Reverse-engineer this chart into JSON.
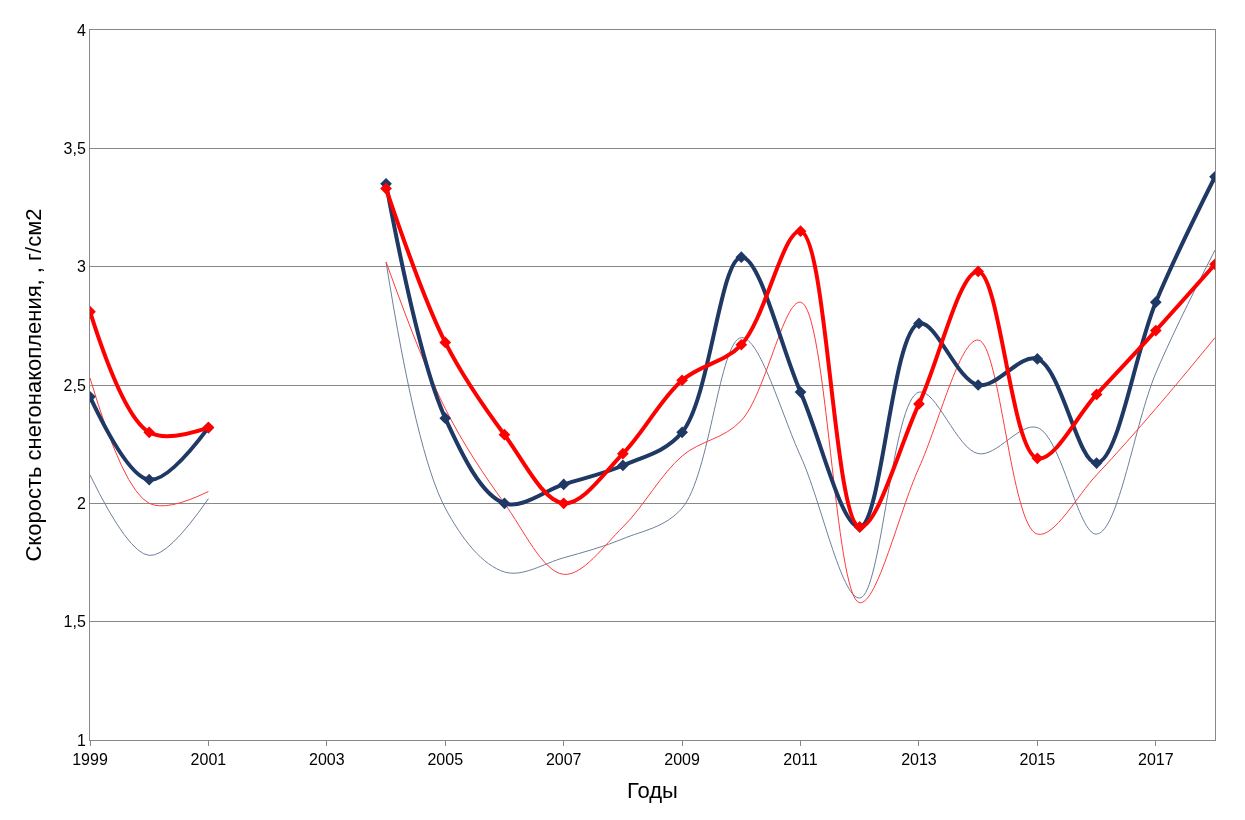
{
  "chart_data": {
    "type": "line",
    "xlabel": "Годы",
    "ylabel": "Скорость снегонакопления, , г/см2",
    "x": [
      1999,
      2000,
      2001,
      2002,
      2003,
      2004,
      2005,
      2006,
      2007,
      2008,
      2009,
      2010,
      2011,
      2012,
      2013,
      2014,
      2015,
      2016,
      2017,
      2018
    ],
    "series": [
      {
        "color": "#6d7f9c",
        "marker": "none",
        "values": [
          2.12,
          1.78,
          2.02,
          null,
          null,
          3.02,
          1.98,
          1.71,
          1.77,
          1.85,
          1.98,
          2.7,
          2.2,
          1.6,
          2.47,
          2.21,
          2.32,
          1.87,
          2.55,
          3.07
        ]
      },
      {
        "color": "#ff3b3b",
        "marker": "none",
        "values": [
          2.53,
          2.0,
          2.05,
          null,
          null,
          3.02,
          2.4,
          2.0,
          1.7,
          1.9,
          2.2,
          2.35,
          2.85,
          1.58,
          2.15,
          2.69,
          1.87,
          2.12,
          2.4,
          2.7
        ]
      },
      {
        "color": "#1f3864",
        "marker": "diamond",
        "values": [
          2.45,
          2.1,
          2.32,
          null,
          null,
          3.35,
          2.36,
          2.0,
          2.08,
          2.16,
          2.3,
          3.04,
          2.47,
          1.9,
          2.76,
          2.5,
          2.61,
          2.17,
          2.85,
          3.38
        ]
      },
      {
        "color": "#ff0000",
        "marker": "diamond",
        "values": [
          2.81,
          2.3,
          2.32,
          null,
          null,
          3.33,
          2.68,
          2.29,
          2.0,
          2.21,
          2.52,
          2.67,
          3.15,
          1.9,
          2.42,
          2.98,
          2.19,
          2.46,
          2.73,
          3.01
        ]
      }
    ],
    "xlim": [
      1999,
      2018
    ],
    "xticks": [
      1999,
      2001,
      2003,
      2005,
      2007,
      2009,
      2011,
      2013,
      2015,
      2017
    ],
    "ylim": [
      1,
      4
    ],
    "yticks": [
      {
        "value": 1,
        "label": "1"
      },
      {
        "value": 1.5,
        "label": "1,5"
      },
      {
        "value": 2,
        "label": "2"
      },
      {
        "value": 2.5,
        "label": "2,5"
      },
      {
        "value": 3,
        "label": "3"
      },
      {
        "value": 3.5,
        "label": "3,5"
      },
      {
        "value": 4,
        "label": "4"
      }
    ],
    "grid": "y",
    "line_style": "solid"
  }
}
